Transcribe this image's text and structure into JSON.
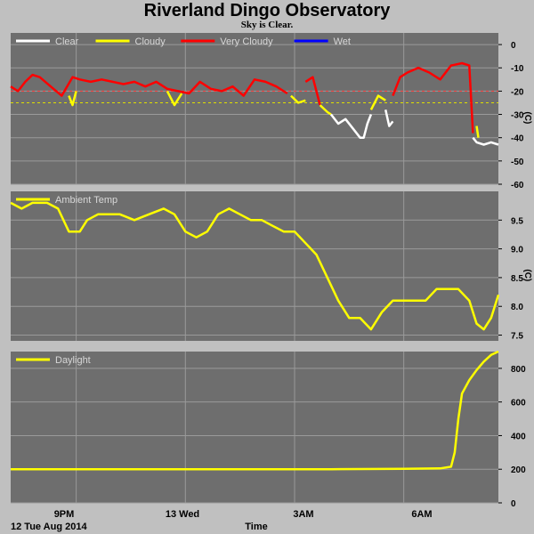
{
  "header": {
    "title": "Riverland Dingo Observatory",
    "subtitle": "Sky is Clear."
  },
  "footer": {
    "date_label": "12 Tue Aug 2014",
    "x_title": "Time"
  },
  "colors": {
    "panel_bg": "#6e6e6e",
    "grid": "#9a9a9a",
    "clear": "#ffffff",
    "cloudy": "#ffff00",
    "very_cloudy": "#ff0000",
    "wet": "#0000ff",
    "threshold_very_cloudy": "#ff4040",
    "threshold_cloudy": "#e0e000"
  },
  "chart_data": [
    {
      "type": "line",
      "name": "sky-temperature",
      "ylabel": "(C)",
      "ylim": [
        -60,
        5
      ],
      "yticks": [
        0,
        -10,
        -20,
        -30,
        -40,
        -50,
        -60
      ],
      "xticks": [
        "9PM",
        "13 Wed",
        "3AM",
        "6AM"
      ],
      "x_hours": [
        21,
        24,
        27,
        30
      ],
      "xlim_hours": [
        19.2,
        32.6
      ],
      "legend": [
        "Clear",
        "Cloudy",
        "Very Cloudy",
        "Wet"
      ],
      "thresholds": [
        -20,
        -25
      ],
      "series": [
        {
          "name": "Very Cloudy",
          "x": [
            19.2,
            19.4,
            19.6,
            19.8,
            20.0,
            20.3,
            20.6,
            20.9,
            21.1,
            21.4,
            21.7,
            22.0,
            22.3,
            22.6,
            22.9,
            23.2,
            23.5,
            23.8,
            24.1,
            24.4,
            24.7,
            25.0,
            25.3,
            25.6,
            25.9,
            26.2,
            26.5,
            26.8
          ],
          "y": [
            -18,
            -20,
            -16,
            -13,
            -14,
            -18,
            -22,
            -14,
            -15,
            -16,
            -15,
            -16,
            -17,
            -16,
            -18,
            -16,
            -19,
            -20,
            -21,
            -16,
            -19,
            -20,
            -18,
            -22,
            -15,
            -16,
            -18,
            -21
          ]
        },
        {
          "name": "Cloudy",
          "x": [
            20.8,
            20.9,
            21.0
          ],
          "y": [
            -22,
            -26,
            -20
          ]
        },
        {
          "name": "Cloudy",
          "x": [
            23.5,
            23.7,
            23.9
          ],
          "y": [
            -20,
            -26,
            -21
          ]
        },
        {
          "name": "Cloudy",
          "x": [
            26.9,
            27.1,
            27.3
          ],
          "y": [
            -22,
            -25,
            -24
          ]
        },
        {
          "name": "Very Cloudy",
          "x": [
            27.3,
            27.5,
            27.7
          ],
          "y": [
            -16,
            -14,
            -26
          ]
        },
        {
          "name": "Cloudy",
          "x": [
            27.7,
            27.9,
            28.0
          ],
          "y": [
            -26,
            -29,
            -30
          ]
        },
        {
          "name": "Clear",
          "x": [
            28.0,
            28.2,
            28.4,
            28.6,
            28.8,
            28.9,
            29.0,
            29.1
          ],
          "y": [
            -30,
            -34,
            -32,
            -36,
            -40,
            -40,
            -34,
            -30
          ]
        },
        {
          "name": "Cloudy",
          "x": [
            29.1,
            29.3,
            29.5
          ],
          "y": [
            -28,
            -22,
            -24
          ]
        },
        {
          "name": "Clear",
          "x": [
            29.5,
            29.6,
            29.7
          ],
          "y": [
            -28,
            -35,
            -33
          ]
        },
        {
          "name": "Very Cloudy",
          "x": [
            29.7,
            29.9,
            30.1,
            30.4,
            30.7,
            31.0,
            31.3,
            31.6,
            31.8,
            31.9
          ],
          "y": [
            -22,
            -14,
            -12,
            -10,
            -12,
            -15,
            -9,
            -8,
            -9,
            -38
          ]
        },
        {
          "name": "Cloudy",
          "x": [
            32.0,
            32.05
          ],
          "y": [
            -35,
            -40
          ]
        },
        {
          "name": "Clear",
          "x": [
            31.9,
            32.0,
            32.2,
            32.4,
            32.6
          ],
          "y": [
            -40,
            -42,
            -43,
            -42,
            -43
          ]
        }
      ]
    },
    {
      "type": "line",
      "name": "ambient-temperature",
      "ylabel": "(C)",
      "ylim": [
        7.4,
        10.0
      ],
      "yticks": [
        9.5,
        9.0,
        8.5,
        8.0,
        7.5
      ],
      "legend": [
        "Ambient Temp"
      ],
      "series": [
        {
          "name": "Ambient Temp",
          "x": [
            19.2,
            19.5,
            19.8,
            20.2,
            20.5,
            20.8,
            21.1,
            21.3,
            21.6,
            21.9,
            22.2,
            22.6,
            23.0,
            23.4,
            23.7,
            24.0,
            24.3,
            24.6,
            24.9,
            25.2,
            25.5,
            25.8,
            26.1,
            26.4,
            26.7,
            27.0,
            27.3,
            27.6,
            27.9,
            28.2,
            28.5,
            28.8,
            29.1,
            29.4,
            29.7,
            30.0,
            30.3,
            30.6,
            30.9,
            31.2,
            31.5,
            31.8,
            32.0,
            32.2,
            32.4,
            32.6
          ],
          "y": [
            9.8,
            9.7,
            9.8,
            9.8,
            9.7,
            9.3,
            9.3,
            9.5,
            9.6,
            9.6,
            9.6,
            9.5,
            9.6,
            9.7,
            9.6,
            9.3,
            9.2,
            9.3,
            9.6,
            9.7,
            9.6,
            9.5,
            9.5,
            9.4,
            9.3,
            9.3,
            9.1,
            8.9,
            8.5,
            8.1,
            7.8,
            7.8,
            7.6,
            7.9,
            8.1,
            8.1,
            8.1,
            8.1,
            8.3,
            8.3,
            8.3,
            8.1,
            7.7,
            7.6,
            7.8,
            8.2
          ]
        }
      ]
    },
    {
      "type": "line",
      "name": "daylight",
      "ylim": [
        0,
        900
      ],
      "yticks": [
        800,
        600,
        400,
        200,
        0
      ],
      "legend": [
        "Daylight"
      ],
      "series": [
        {
          "name": "Daylight",
          "x": [
            19.2,
            22.0,
            25.0,
            28.0,
            30.0,
            31.0,
            31.3,
            31.4,
            31.5,
            31.6,
            31.8,
            32.0,
            32.2,
            32.4,
            32.6
          ],
          "y": [
            200,
            200,
            200,
            200,
            202,
            205,
            215,
            300,
            500,
            650,
            730,
            790,
            840,
            880,
            900
          ]
        }
      ]
    }
  ]
}
